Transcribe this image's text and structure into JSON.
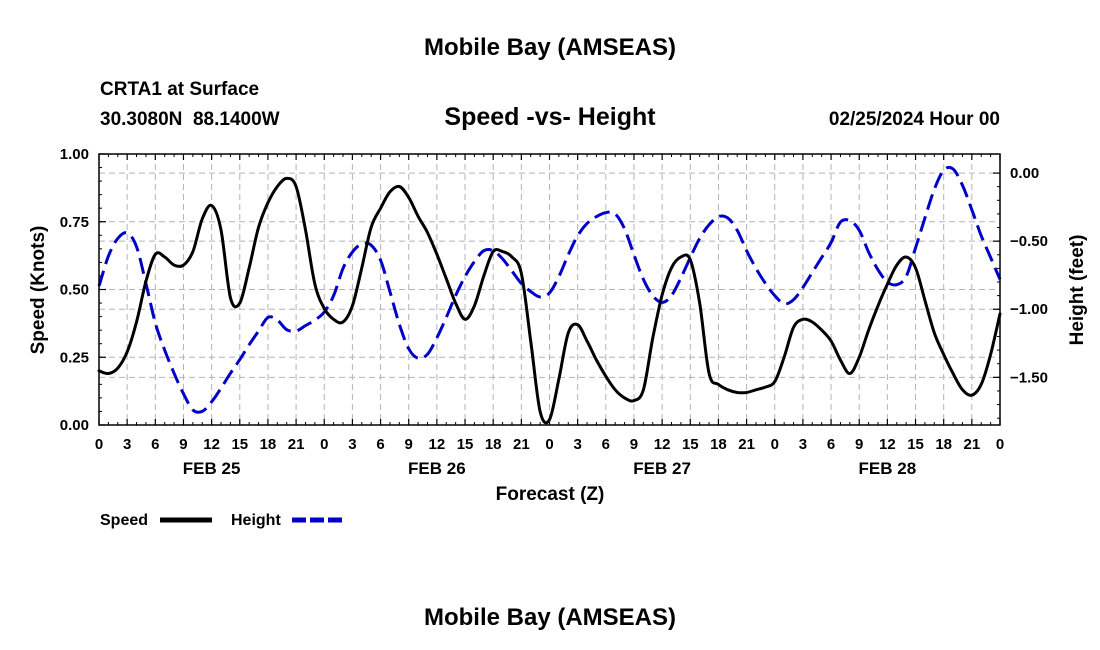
{
  "header": {
    "title": "Mobile Bay (AMSEAS)",
    "station": "CRTA1 at Surface",
    "coords": "30.3080N  88.1400W",
    "subtitle": "Speed -vs- Height",
    "datetime": "02/25/2024 Hour 00",
    "footer_title": "Mobile Bay (AMSEAS)"
  },
  "chart_data": {
    "type": "line",
    "title": "Speed -vs- Height",
    "xlabel": "Forecast (Z)",
    "ylabel_left": "Speed (Knots)",
    "ylabel_right": "Height (feet)",
    "x_range_hours": [
      0,
      96
    ],
    "y_left_range": [
      0,
      1.0
    ],
    "y_right_range": [
      -1.85,
      0.14
    ],
    "y_left_ticks": [
      "0.00",
      "0.25",
      "0.50",
      "0.75",
      "1.00"
    ],
    "y_left_tick_values": [
      0,
      0.25,
      0.5,
      0.75,
      1.0
    ],
    "y_right_ticks": [
      "0.00",
      "−0.50",
      "−1.00",
      "−1.50"
    ],
    "y_right_tick_values": [
      0,
      -0.5,
      -1.0,
      -1.5
    ],
    "x_tick_labels": [
      "0",
      "3",
      "6",
      "9",
      "12",
      "15",
      "18",
      "21",
      "0",
      "3",
      "6",
      "9",
      "12",
      "15",
      "18",
      "21",
      "0",
      "3",
      "6",
      "9",
      "12",
      "15",
      "18",
      "21",
      "0",
      "3",
      "6",
      "9",
      "12",
      "15",
      "18",
      "21",
      "0"
    ],
    "date_labels": [
      {
        "text": "FEB 25",
        "hour": 12
      },
      {
        "text": "FEB 26",
        "hour": 36
      },
      {
        "text": "FEB 27",
        "hour": 60
      },
      {
        "text": "FEB 28",
        "hour": 84
      }
    ],
    "grid": true,
    "legend": [
      {
        "name": "Speed",
        "color": "#000000",
        "style": "solid"
      },
      {
        "name": "Height",
        "color": "#0000c8",
        "style": "dashed"
      }
    ],
    "series": [
      {
        "name": "Speed",
        "axis": "left",
        "color": "#000000",
        "points": [
          [
            0,
            0.2
          ],
          [
            1,
            0.19
          ],
          [
            2,
            0.21
          ],
          [
            3,
            0.27
          ],
          [
            4,
            0.38
          ],
          [
            5,
            0.53
          ],
          [
            6,
            0.63
          ],
          [
            7,
            0.62
          ],
          [
            8,
            0.59
          ],
          [
            9,
            0.59
          ],
          [
            10,
            0.64
          ],
          [
            11,
            0.76
          ],
          [
            12,
            0.81
          ],
          [
            13,
            0.72
          ],
          [
            14,
            0.47
          ],
          [
            15,
            0.45
          ],
          [
            16,
            0.58
          ],
          [
            17,
            0.73
          ],
          [
            18,
            0.82
          ],
          [
            19,
            0.88
          ],
          [
            20,
            0.91
          ],
          [
            21,
            0.88
          ],
          [
            22,
            0.72
          ],
          [
            23,
            0.52
          ],
          [
            24,
            0.43
          ],
          [
            25,
            0.39
          ],
          [
            26,
            0.38
          ],
          [
            27,
            0.44
          ],
          [
            28,
            0.58
          ],
          [
            29,
            0.73
          ],
          [
            30,
            0.8
          ],
          [
            31,
            0.86
          ],
          [
            32,
            0.88
          ],
          [
            33,
            0.84
          ],
          [
            34,
            0.77
          ],
          [
            35,
            0.71
          ],
          [
            36,
            0.63
          ],
          [
            37,
            0.54
          ],
          [
            38,
            0.45
          ],
          [
            39,
            0.39
          ],
          [
            40,
            0.44
          ],
          [
            41,
            0.55
          ],
          [
            42,
            0.64
          ],
          [
            43,
            0.64
          ],
          [
            44,
            0.62
          ],
          [
            45,
            0.56
          ],
          [
            46,
            0.31
          ],
          [
            47,
            0.05
          ],
          [
            48,
            0.02
          ],
          [
            49,
            0.17
          ],
          [
            50,
            0.34
          ],
          [
            51,
            0.37
          ],
          [
            52,
            0.31
          ],
          [
            53,
            0.24
          ],
          [
            54,
            0.18
          ],
          [
            55,
            0.13
          ],
          [
            56,
            0.1
          ],
          [
            57,
            0.09
          ],
          [
            58,
            0.13
          ],
          [
            59,
            0.32
          ],
          [
            60,
            0.48
          ],
          [
            61,
            0.58
          ],
          [
            62,
            0.62
          ],
          [
            63,
            0.61
          ],
          [
            64,
            0.45
          ],
          [
            65,
            0.19
          ],
          [
            66,
            0.15
          ],
          [
            67,
            0.13
          ],
          [
            68,
            0.12
          ],
          [
            69,
            0.12
          ],
          [
            70,
            0.13
          ],
          [
            71,
            0.14
          ],
          [
            72,
            0.16
          ],
          [
            73,
            0.25
          ],
          [
            74,
            0.36
          ],
          [
            75,
            0.39
          ],
          [
            76,
            0.38
          ],
          [
            77,
            0.35
          ],
          [
            78,
            0.31
          ],
          [
            79,
            0.24
          ],
          [
            80,
            0.19
          ],
          [
            81,
            0.25
          ],
          [
            82,
            0.35
          ],
          [
            83,
            0.44
          ],
          [
            84,
            0.52
          ],
          [
            85,
            0.59
          ],
          [
            86,
            0.62
          ],
          [
            87,
            0.58
          ],
          [
            88,
            0.46
          ],
          [
            89,
            0.34
          ],
          [
            90,
            0.26
          ],
          [
            91,
            0.19
          ],
          [
            92,
            0.13
          ],
          [
            93,
            0.11
          ],
          [
            94,
            0.15
          ],
          [
            95,
            0.26
          ],
          [
            96,
            0.41
          ]
        ]
      },
      {
        "name": "Height",
        "axis": "right",
        "color": "#0000c8",
        "points": [
          [
            0,
            -0.83
          ],
          [
            1,
            -0.61
          ],
          [
            2,
            -0.48
          ],
          [
            3,
            -0.44
          ],
          [
            4,
            -0.54
          ],
          [
            5,
            -0.81
          ],
          [
            6,
            -1.1
          ],
          [
            7,
            -1.3
          ],
          [
            8,
            -1.47
          ],
          [
            9,
            -1.62
          ],
          [
            10,
            -1.74
          ],
          [
            11,
            -1.75
          ],
          [
            12,
            -1.68
          ],
          [
            13,
            -1.58
          ],
          [
            14,
            -1.47
          ],
          [
            15,
            -1.37
          ],
          [
            16,
            -1.26
          ],
          [
            17,
            -1.16
          ],
          [
            18,
            -1.06
          ],
          [
            19,
            -1.08
          ],
          [
            20,
            -1.15
          ],
          [
            21,
            -1.16
          ],
          [
            22,
            -1.12
          ],
          [
            23,
            -1.08
          ],
          [
            24,
            -1.02
          ],
          [
            25,
            -0.9
          ],
          [
            26,
            -0.7
          ],
          [
            27,
            -0.58
          ],
          [
            28,
            -0.52
          ],
          [
            29,
            -0.53
          ],
          [
            30,
            -0.64
          ],
          [
            31,
            -0.87
          ],
          [
            32,
            -1.11
          ],
          [
            33,
            -1.29
          ],
          [
            34,
            -1.36
          ],
          [
            35,
            -1.33
          ],
          [
            36,
            -1.21
          ],
          [
            37,
            -1.06
          ],
          [
            38,
            -0.9
          ],
          [
            39,
            -0.76
          ],
          [
            40,
            -0.65
          ],
          [
            41,
            -0.57
          ],
          [
            42,
            -0.57
          ],
          [
            43,
            -0.63
          ],
          [
            44,
            -0.72
          ],
          [
            45,
            -0.81
          ],
          [
            46,
            -0.87
          ],
          [
            47,
            -0.91
          ],
          [
            48,
            -0.88
          ],
          [
            49,
            -0.76
          ],
          [
            50,
            -0.6
          ],
          [
            51,
            -0.46
          ],
          [
            52,
            -0.37
          ],
          [
            53,
            -0.32
          ],
          [
            54,
            -0.29
          ],
          [
            55,
            -0.3
          ],
          [
            56,
            -0.41
          ],
          [
            57,
            -0.6
          ],
          [
            58,
            -0.78
          ],
          [
            59,
            -0.9
          ],
          [
            60,
            -0.95
          ],
          [
            61,
            -0.9
          ],
          [
            62,
            -0.77
          ],
          [
            63,
            -0.62
          ],
          [
            64,
            -0.48
          ],
          [
            65,
            -0.38
          ],
          [
            66,
            -0.32
          ],
          [
            67,
            -0.33
          ],
          [
            68,
            -0.42
          ],
          [
            69,
            -0.57
          ],
          [
            70,
            -0.7
          ],
          [
            71,
            -0.81
          ],
          [
            72,
            -0.9
          ],
          [
            73,
            -0.96
          ],
          [
            74,
            -0.93
          ],
          [
            75,
            -0.84
          ],
          [
            76,
            -0.73
          ],
          [
            77,
            -0.62
          ],
          [
            78,
            -0.51
          ],
          [
            79,
            -0.36
          ],
          [
            80,
            -0.35
          ],
          [
            81,
            -0.42
          ],
          [
            82,
            -0.58
          ],
          [
            83,
            -0.71
          ],
          [
            84,
            -0.8
          ],
          [
            85,
            -0.82
          ],
          [
            86,
            -0.76
          ],
          [
            87,
            -0.55
          ],
          [
            88,
            -0.33
          ],
          [
            89,
            -0.12
          ],
          [
            90,
            0.02
          ],
          [
            91,
            0.03
          ],
          [
            92,
            -0.09
          ],
          [
            93,
            -0.27
          ],
          [
            94,
            -0.46
          ],
          [
            95,
            -0.62
          ],
          [
            96,
            -0.78
          ]
        ]
      }
    ]
  }
}
